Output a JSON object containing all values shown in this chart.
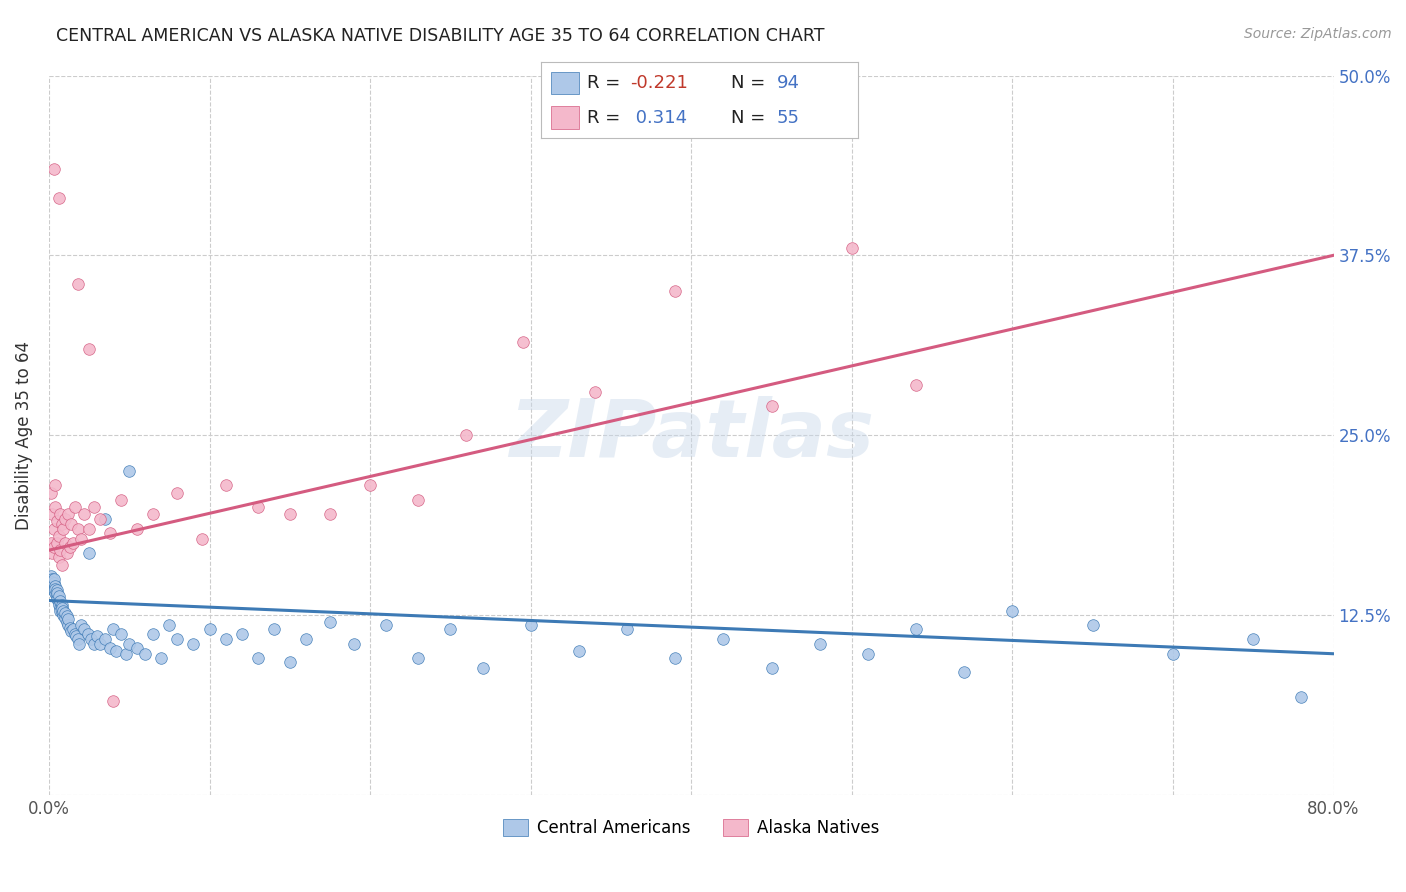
{
  "title": "CENTRAL AMERICAN VS ALASKA NATIVE DISABILITY AGE 35 TO 64 CORRELATION CHART",
  "source": "Source: ZipAtlas.com",
  "ylabel": "Disability Age 35 to 64",
  "xlim": [
    0.0,
    0.8
  ],
  "ylim": [
    0.0,
    0.5
  ],
  "x_ticks": [
    0.0,
    0.1,
    0.2,
    0.3,
    0.4,
    0.5,
    0.6,
    0.7,
    0.8
  ],
  "x_tick_labels": [
    "0.0%",
    "",
    "",
    "",
    "",
    "",
    "",
    "",
    "80.0%"
  ],
  "y_ticks": [
    0.0,
    0.125,
    0.25,
    0.375,
    0.5
  ],
  "y_tick_labels_right": [
    "",
    "12.5%",
    "25.0%",
    "37.5%",
    "50.0%"
  ],
  "legend_entries": [
    "Central Americans",
    "Alaska Natives"
  ],
  "blue_color": "#aec8e8",
  "pink_color": "#f4b8cb",
  "blue_line_color": "#3d7ab5",
  "pink_line_color": "#d45b80",
  "watermark": "ZIPatlas",
  "background_color": "#ffffff",
  "grid_color": "#cccccc",
  "blue_line_x0": 0.0,
  "blue_line_y0": 0.135,
  "blue_line_x1": 0.8,
  "blue_line_y1": 0.098,
  "pink_line_x0": 0.0,
  "pink_line_y0": 0.17,
  "pink_line_x1": 0.8,
  "pink_line_y1": 0.375,
  "blue_x": [
    0.001,
    0.001,
    0.001,
    0.002,
    0.002,
    0.002,
    0.002,
    0.003,
    0.003,
    0.003,
    0.003,
    0.004,
    0.004,
    0.004,
    0.005,
    0.005,
    0.005,
    0.005,
    0.006,
    0.006,
    0.006,
    0.007,
    0.007,
    0.007,
    0.008,
    0.008,
    0.008,
    0.009,
    0.009,
    0.01,
    0.01,
    0.011,
    0.011,
    0.012,
    0.012,
    0.013,
    0.014,
    0.015,
    0.016,
    0.017,
    0.018,
    0.019,
    0.02,
    0.022,
    0.024,
    0.026,
    0.028,
    0.03,
    0.032,
    0.035,
    0.038,
    0.04,
    0.042,
    0.045,
    0.048,
    0.05,
    0.055,
    0.06,
    0.065,
    0.07,
    0.075,
    0.08,
    0.09,
    0.1,
    0.11,
    0.12,
    0.13,
    0.14,
    0.15,
    0.16,
    0.175,
    0.19,
    0.21,
    0.23,
    0.25,
    0.27,
    0.3,
    0.33,
    0.36,
    0.39,
    0.42,
    0.45,
    0.48,
    0.51,
    0.54,
    0.57,
    0.6,
    0.65,
    0.7,
    0.75,
    0.78,
    0.025,
    0.035,
    0.05
  ],
  "blue_y": [
    0.148,
    0.145,
    0.152,
    0.146,
    0.143,
    0.15,
    0.148,
    0.144,
    0.147,
    0.142,
    0.15,
    0.145,
    0.14,
    0.143,
    0.138,
    0.142,
    0.136,
    0.14,
    0.134,
    0.138,
    0.132,
    0.13,
    0.135,
    0.128,
    0.132,
    0.127,
    0.13,
    0.125,
    0.128,
    0.123,
    0.126,
    0.12,
    0.124,
    0.118,
    0.122,
    0.116,
    0.114,
    0.115,
    0.112,
    0.11,
    0.108,
    0.105,
    0.118,
    0.115,
    0.112,
    0.108,
    0.105,
    0.11,
    0.105,
    0.108,
    0.102,
    0.115,
    0.1,
    0.112,
    0.098,
    0.105,
    0.102,
    0.098,
    0.112,
    0.095,
    0.118,
    0.108,
    0.105,
    0.115,
    0.108,
    0.112,
    0.095,
    0.115,
    0.092,
    0.108,
    0.12,
    0.105,
    0.118,
    0.095,
    0.115,
    0.088,
    0.118,
    0.1,
    0.115,
    0.095,
    0.108,
    0.088,
    0.105,
    0.098,
    0.115,
    0.085,
    0.128,
    0.118,
    0.098,
    0.108,
    0.068,
    0.168,
    0.192,
    0.225
  ],
  "pink_x": [
    0.001,
    0.001,
    0.002,
    0.002,
    0.003,
    0.003,
    0.004,
    0.004,
    0.005,
    0.005,
    0.006,
    0.006,
    0.007,
    0.007,
    0.008,
    0.008,
    0.009,
    0.01,
    0.01,
    0.011,
    0.012,
    0.013,
    0.014,
    0.015,
    0.016,
    0.018,
    0.02,
    0.022,
    0.025,
    0.028,
    0.032,
    0.038,
    0.045,
    0.055,
    0.065,
    0.08,
    0.095,
    0.11,
    0.13,
    0.15,
    0.175,
    0.2,
    0.23,
    0.26,
    0.295,
    0.34,
    0.39,
    0.45,
    0.5,
    0.54,
    0.003,
    0.006,
    0.018,
    0.025,
    0.04
  ],
  "pink_y": [
    0.175,
    0.21,
    0.168,
    0.195,
    0.172,
    0.185,
    0.2,
    0.215,
    0.175,
    0.19,
    0.165,
    0.18,
    0.195,
    0.17,
    0.188,
    0.16,
    0.185,
    0.175,
    0.192,
    0.168,
    0.195,
    0.172,
    0.188,
    0.175,
    0.2,
    0.185,
    0.178,
    0.195,
    0.185,
    0.2,
    0.192,
    0.182,
    0.205,
    0.185,
    0.195,
    0.21,
    0.178,
    0.215,
    0.2,
    0.195,
    0.195,
    0.215,
    0.205,
    0.25,
    0.315,
    0.28,
    0.35,
    0.27,
    0.38,
    0.285,
    0.435,
    0.415,
    0.355,
    0.31,
    0.065
  ]
}
